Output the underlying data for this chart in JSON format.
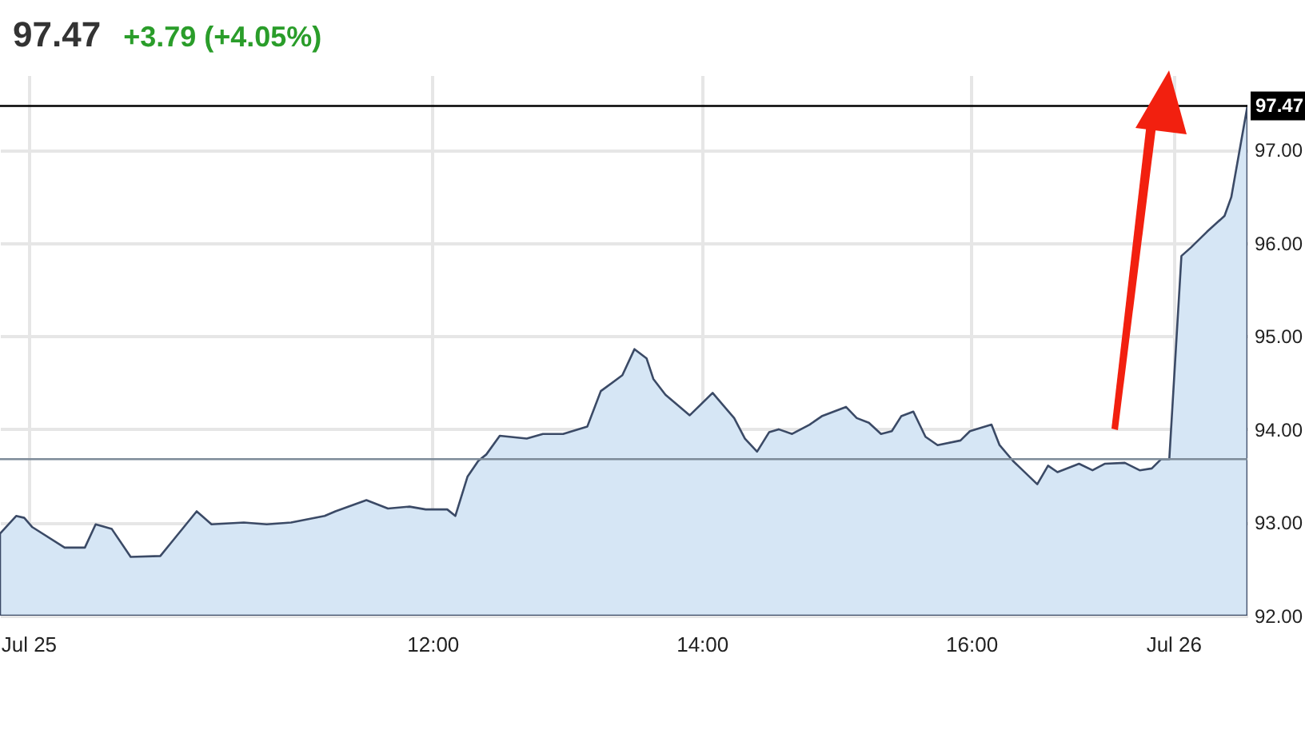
{
  "chart_data": {
    "type": "area",
    "title": "97.47",
    "subtitle": "+3.79 (+4.05%)",
    "x": [
      8.79,
      8.91,
      8.97,
      9.03,
      9.27,
      9.42,
      9.5,
      9.62,
      9.76,
      9.98,
      10.07,
      10.25,
      10.36,
      10.6,
      10.77,
      10.95,
      11.2,
      11.28,
      11.51,
      11.67,
      11.83,
      11.95,
      12.11,
      12.17,
      12.26,
      12.34,
      12.4,
      12.5,
      12.7,
      12.82,
      12.97,
      13.15,
      13.25,
      13.41,
      13.5,
      13.59,
      13.64,
      13.73,
      13.91,
      14.08,
      14.24,
      14.32,
      14.41,
      14.5,
      14.57,
      14.67,
      14.8,
      14.89,
      15.07,
      15.15,
      15.24,
      15.33,
      15.41,
      15.48,
      15.57,
      15.66,
      15.75,
      15.92,
      15.99,
      16.15,
      16.21,
      16.31,
      16.49,
      16.57,
      16.64,
      16.8,
      16.9,
      16.99,
      17.14,
      17.25,
      17.34,
      17.41,
      17.47,
      17.56,
      17.63,
      17.75,
      17.88,
      17.93,
      18.05
    ],
    "series": [
      {
        "color": "#3b4a66",
        "values": [
          92.88,
          93.07,
          93.05,
          92.95,
          92.73,
          92.73,
          92.98,
          92.93,
          92.63,
          92.64,
          92.8,
          93.12,
          92.98,
          93.0,
          92.98,
          93.0,
          93.07,
          93.12,
          93.24,
          93.15,
          93.17,
          93.14,
          93.14,
          93.07,
          93.49,
          93.66,
          93.73,
          93.93,
          93.9,
          93.95,
          93.95,
          94.03,
          94.41,
          94.58,
          94.86,
          94.76,
          94.54,
          94.37,
          94.15,
          94.39,
          94.12,
          93.9,
          93.76,
          93.97,
          94.0,
          93.95,
          94.05,
          94.14,
          94.24,
          94.12,
          94.07,
          93.95,
          93.98,
          94.14,
          94.19,
          93.92,
          93.83,
          93.88,
          93.98,
          94.05,
          93.83,
          93.66,
          93.41,
          93.61,
          93.54,
          93.63,
          93.56,
          93.63,
          93.64,
          93.56,
          93.58,
          93.68,
          93.68,
          95.86,
          95.95,
          96.12,
          96.29,
          96.49,
          97.47
        ]
      }
    ],
    "xlim": [
      8.79,
      18.05
    ],
    "xticks": [
      {
        "value": 9,
        "label": "Jul 25"
      },
      {
        "value": 12,
        "label": "12:00"
      },
      {
        "value": 14,
        "label": "14:00"
      },
      {
        "value": 16,
        "label": "16:00"
      },
      {
        "value": 17.5,
        "label": "Jul 26"
      }
    ],
    "ylim": [
      92,
      97.8
    ],
    "yticks": [
      {
        "value": 92,
        "label": "92.00"
      },
      {
        "value": 93,
        "label": "93.00"
      },
      {
        "value": 94,
        "label": "94.00"
      },
      {
        "value": 95,
        "label": "95.00"
      },
      {
        "value": 96,
        "label": "96.00"
      },
      {
        "value": 97,
        "label": "97.00"
      }
    ],
    "ref_lines": [
      {
        "axis": "y",
        "value": 97.47,
        "label": "97.47",
        "color": "#000000"
      },
      {
        "axis": "y",
        "value": 93.68,
        "color": "#7d8b99"
      }
    ],
    "grid": true
  }
}
